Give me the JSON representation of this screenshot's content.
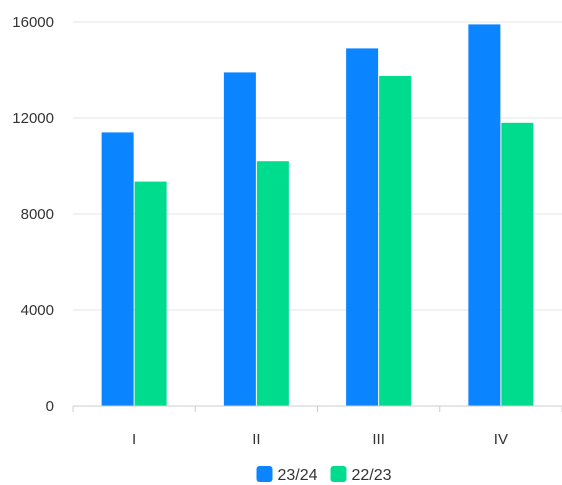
{
  "chart_data": {
    "type": "bar",
    "categories": [
      "I",
      "II",
      "III",
      "IV"
    ],
    "series": [
      {
        "name": "23/24",
        "color": "#0a84ff",
        "values": [
          11400,
          13900,
          14900,
          15900
        ]
      },
      {
        "name": "22/23",
        "color": "#00dc8e",
        "values": [
          9350,
          10200,
          13750,
          11800
        ]
      }
    ],
    "ylim": [
      0,
      16000
    ],
    "yticks": [
      0,
      4000,
      8000,
      12000,
      16000
    ],
    "grid": true,
    "legend": "bottom-center",
    "title": "",
    "xlabel": "",
    "ylabel": ""
  }
}
